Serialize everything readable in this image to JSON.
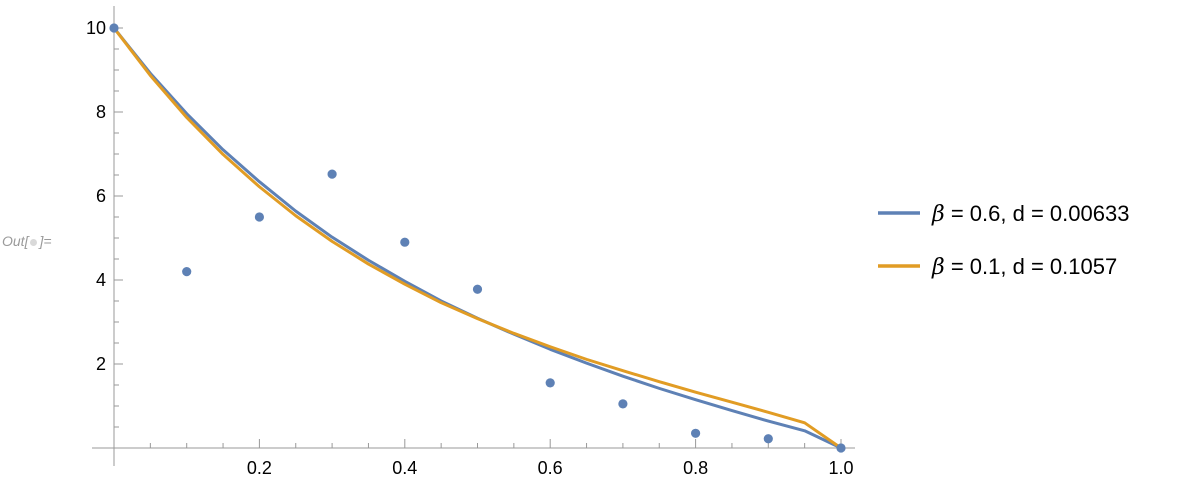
{
  "cell": {
    "out_label": "Out[",
    "out_label_end": "]="
  },
  "colors": {
    "points": "#5E81B5",
    "series_1": "#5E81B5",
    "series_2": "#E19C24",
    "axis": "#999999"
  },
  "chart_data": {
    "type": "scatter",
    "title": "",
    "xlabel": "",
    "ylabel": "",
    "xlim": [
      0,
      1.0
    ],
    "ylim": [
      0,
      10
    ],
    "x_ticks": [
      {
        "value": 0.2,
        "label": "0.2"
      },
      {
        "value": 0.4,
        "label": "0.4"
      },
      {
        "value": 0.6,
        "label": "0.6"
      },
      {
        "value": 0.8,
        "label": "0.8"
      },
      {
        "value": 1.0,
        "label": "1.0"
      }
    ],
    "y_ticks": [
      {
        "value": 2,
        "label": "2"
      },
      {
        "value": 4,
        "label": "4"
      },
      {
        "value": 6,
        "label": "6"
      },
      {
        "value": 8,
        "label": "8"
      },
      {
        "value": 10,
        "label": "10"
      }
    ],
    "points": {
      "x": [
        0.0,
        0.1,
        0.2,
        0.3,
        0.4,
        0.5,
        0.6,
        0.7,
        0.8,
        0.9,
        1.0
      ],
      "y": [
        10.0,
        4.2,
        5.5,
        6.52,
        4.9,
        3.78,
        1.55,
        1.05,
        0.35,
        0.22,
        0.0
      ]
    },
    "series": [
      {
        "name": "β = 0.6, d = 0.00633",
        "legend_parts": {
          "greek": "β",
          "rest": " = 0.6, d = 0.00633"
        },
        "x": [
          0,
          0.05,
          0.1,
          0.15,
          0.2,
          0.25,
          0.3,
          0.35,
          0.4,
          0.45,
          0.5,
          0.55,
          0.6,
          0.65,
          0.7,
          0.75,
          0.8,
          0.85,
          0.9,
          0.95,
          1.0
        ],
        "y": [
          10.0,
          8.92,
          7.96,
          7.1,
          6.34,
          5.64,
          5.02,
          4.47,
          3.97,
          3.5,
          3.09,
          2.71,
          2.35,
          2.02,
          1.71,
          1.42,
          1.15,
          0.89,
          0.64,
          0.41,
          0.0
        ]
      },
      {
        "name": "β = 0.1, d = 0.1057",
        "legend_parts": {
          "greek": "β",
          "rest": " = 0.1, d = 0.1057"
        },
        "x": [
          0,
          0.05,
          0.1,
          0.15,
          0.2,
          0.25,
          0.3,
          0.35,
          0.4,
          0.45,
          0.5,
          0.55,
          0.6,
          0.65,
          0.7,
          0.75,
          0.8,
          0.85,
          0.9,
          0.95,
          1.0
        ],
        "y": [
          10.0,
          8.87,
          7.87,
          6.99,
          6.22,
          5.53,
          4.92,
          4.38,
          3.9,
          3.46,
          3.08,
          2.73,
          2.41,
          2.11,
          1.84,
          1.58,
          1.33,
          1.09,
          0.85,
          0.6,
          0.0
        ]
      }
    ],
    "legend_position": "right",
    "grid": false
  }
}
